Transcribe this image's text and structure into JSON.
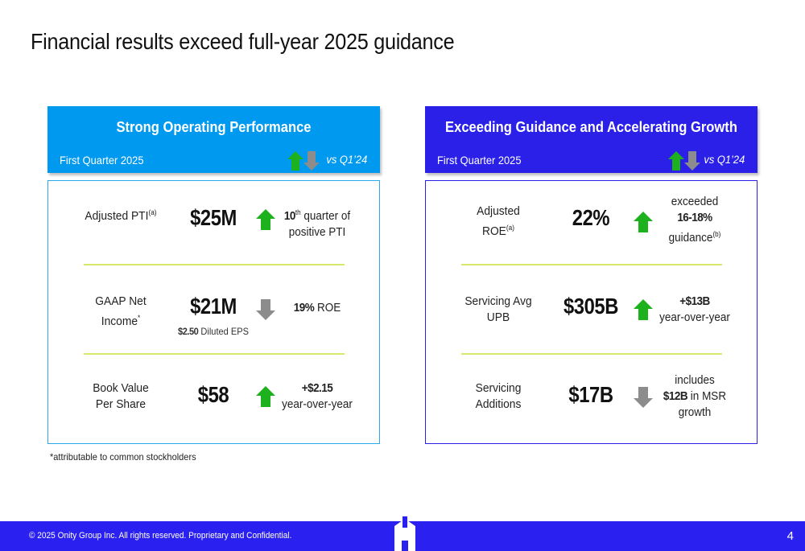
{
  "title": "Financial results exceed full-year 2025 guidance",
  "left": {
    "heading": "Strong Operating Performance",
    "period": "First Quarter 2025",
    "compare": "vs Q1’24",
    "rows": [
      {
        "label": "Adjusted PTI",
        "label_sup": "(a)",
        "value": "$25M",
        "direction": "up",
        "note_bold": "10",
        "note_sup": "th",
        "note_rest": " quarter of positive PTI"
      },
      {
        "label": "GAAP Net Income",
        "label_sup": "*",
        "value": "$21M",
        "sub_bold": "$2.50",
        "sub_rest": " Diluted EPS",
        "direction": "down",
        "note_bold": "19%",
        "note_rest": " ROE"
      },
      {
        "label": "Book Value Per Share",
        "value": "$58",
        "direction": "up",
        "note_bold": "+$2.15",
        "note_rest": "year-over-year"
      }
    ]
  },
  "right": {
    "heading": "Exceeding Guidance and Accelerating Growth",
    "period": "First Quarter 2025",
    "compare": "vs Q1’24",
    "rows": [
      {
        "label": "Adjusted ROE",
        "label_sup": "(a)",
        "value": "22%",
        "direction": "up",
        "note_pre": "exceeded",
        "note_bold": "16-18%",
        "note_rest": "guidance",
        "note_sup": "(b)"
      },
      {
        "label": "Servicing Avg UPB",
        "value": "$305B",
        "direction": "up",
        "note_bold": "+$13B",
        "note_rest": "year-over-year"
      },
      {
        "label": "Servicing Additions",
        "value": "$17B",
        "direction": "down",
        "note_pre": "includes",
        "note_bold": "$12B",
        "note_rest": " in MSR growth"
      }
    ]
  },
  "footnote": "*attributable to common stockholders",
  "footer": {
    "copyright": "© 2025 Onity Group Inc. All rights reserved. Proprietary and Confidential.",
    "page": "4"
  },
  "colors": {
    "up_arrow": "#1db21d",
    "down_arrow": "#8c8c8c",
    "left_header": "#0099f0",
    "right_header": "#2a20e8",
    "footer": "#2a20f0",
    "separator": "#d7e86a"
  }
}
